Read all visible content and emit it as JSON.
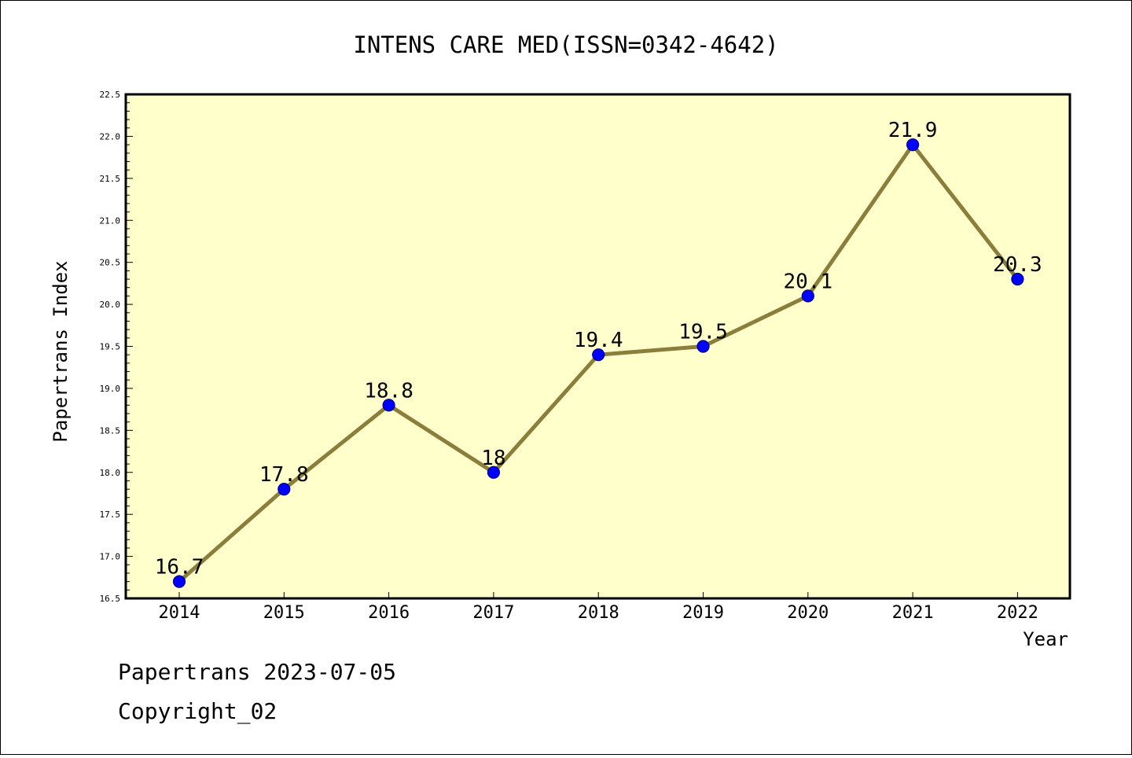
{
  "chart_data": {
    "type": "line",
    "title": "INTENS CARE MED(ISSN=0342-4642)",
    "xlabel": "Year",
    "ylabel": "Papertrans Index",
    "categories": [
      "2014",
      "2015",
      "2016",
      "2017",
      "2018",
      "2019",
      "2020",
      "2021",
      "2022"
    ],
    "values": [
      16.7,
      17.8,
      18.8,
      18,
      19.4,
      19.5,
      20.1,
      21.9,
      20.3
    ],
    "data_labels": [
      "16.7",
      "17.8",
      "18.8",
      "18",
      "19.4",
      "19.5",
      "20.1",
      "21.9",
      "20.3"
    ],
    "ylim": [
      16.5,
      22.5
    ],
    "yticks": [
      16.5,
      17.0,
      17.5,
      18.0,
      18.5,
      19.0,
      19.5,
      20.0,
      20.5,
      21.0,
      21.5,
      22.0,
      22.5
    ],
    "ytick_labels": [
      "16.5",
      "17.0",
      "17.5",
      "18.0",
      "18.5",
      "19.0",
      "19.5",
      "20.0",
      "20.5",
      "21.0",
      "21.5",
      "22.0",
      "22.5"
    ],
    "grid": false,
    "legend": "none",
    "colors": {
      "plot_background": "#ffffcc",
      "line": "#8b7d3a",
      "marker": "#0000ff",
      "marker_edge": "#00008b",
      "frame": "#000000"
    }
  },
  "footer": {
    "line1": "Papertrans 2023-07-05",
    "line2": "Copyright_02"
  }
}
